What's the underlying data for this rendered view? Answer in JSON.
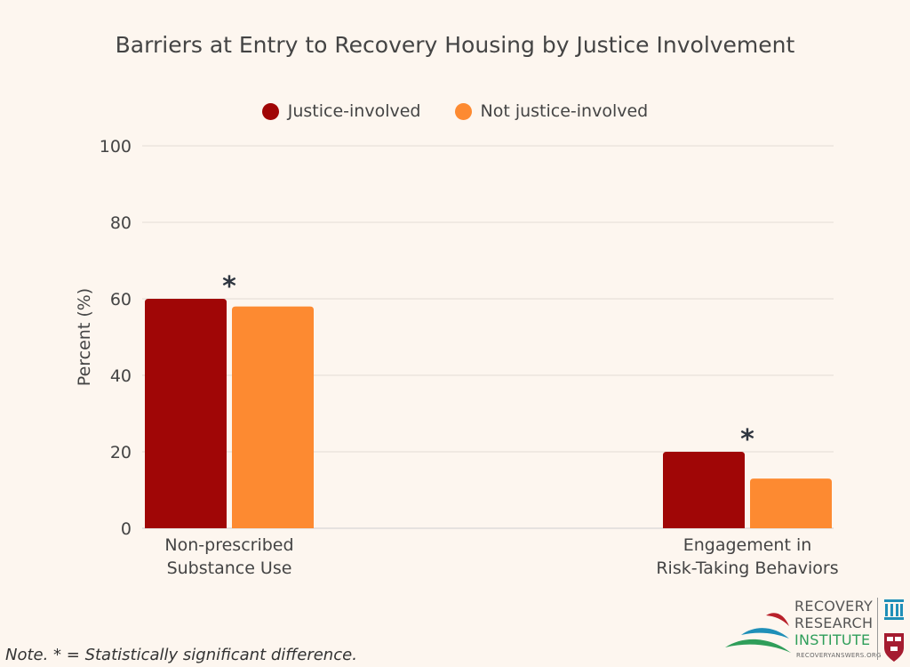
{
  "chart_data": {
    "type": "bar",
    "title": "Barriers at Entry to Recovery Housing by Justice Involvement",
    "ylabel": "Percent (%)",
    "xlabel": "",
    "ylim": [
      0,
      100
    ],
    "yticks": [
      0,
      20,
      40,
      60,
      80,
      100
    ],
    "grid": true,
    "legend_position": "top-center",
    "categories": [
      [
        "Non-prescribed",
        "Substance Use"
      ],
      [
        "Engagement in",
        "Risk-Taking Behaviors"
      ]
    ],
    "series": [
      {
        "name": "Justice-involved",
        "color": "#a00606",
        "values": [
          60,
          20
        ]
      },
      {
        "name": "Not justice-involved",
        "color": "#fd8a31",
        "values": [
          58,
          13
        ]
      }
    ],
    "annotations": [
      {
        "category_index": 0,
        "text": "*"
      },
      {
        "category_index": 1,
        "text": "*"
      }
    ]
  },
  "note": "Note. * = Statistically significant difference.",
  "logo": {
    "line1": "RECOVERY",
    "line2": "RESEARCH",
    "line3": "INSTITUTE",
    "url": "RECOVERYANSWERS.ORG"
  }
}
